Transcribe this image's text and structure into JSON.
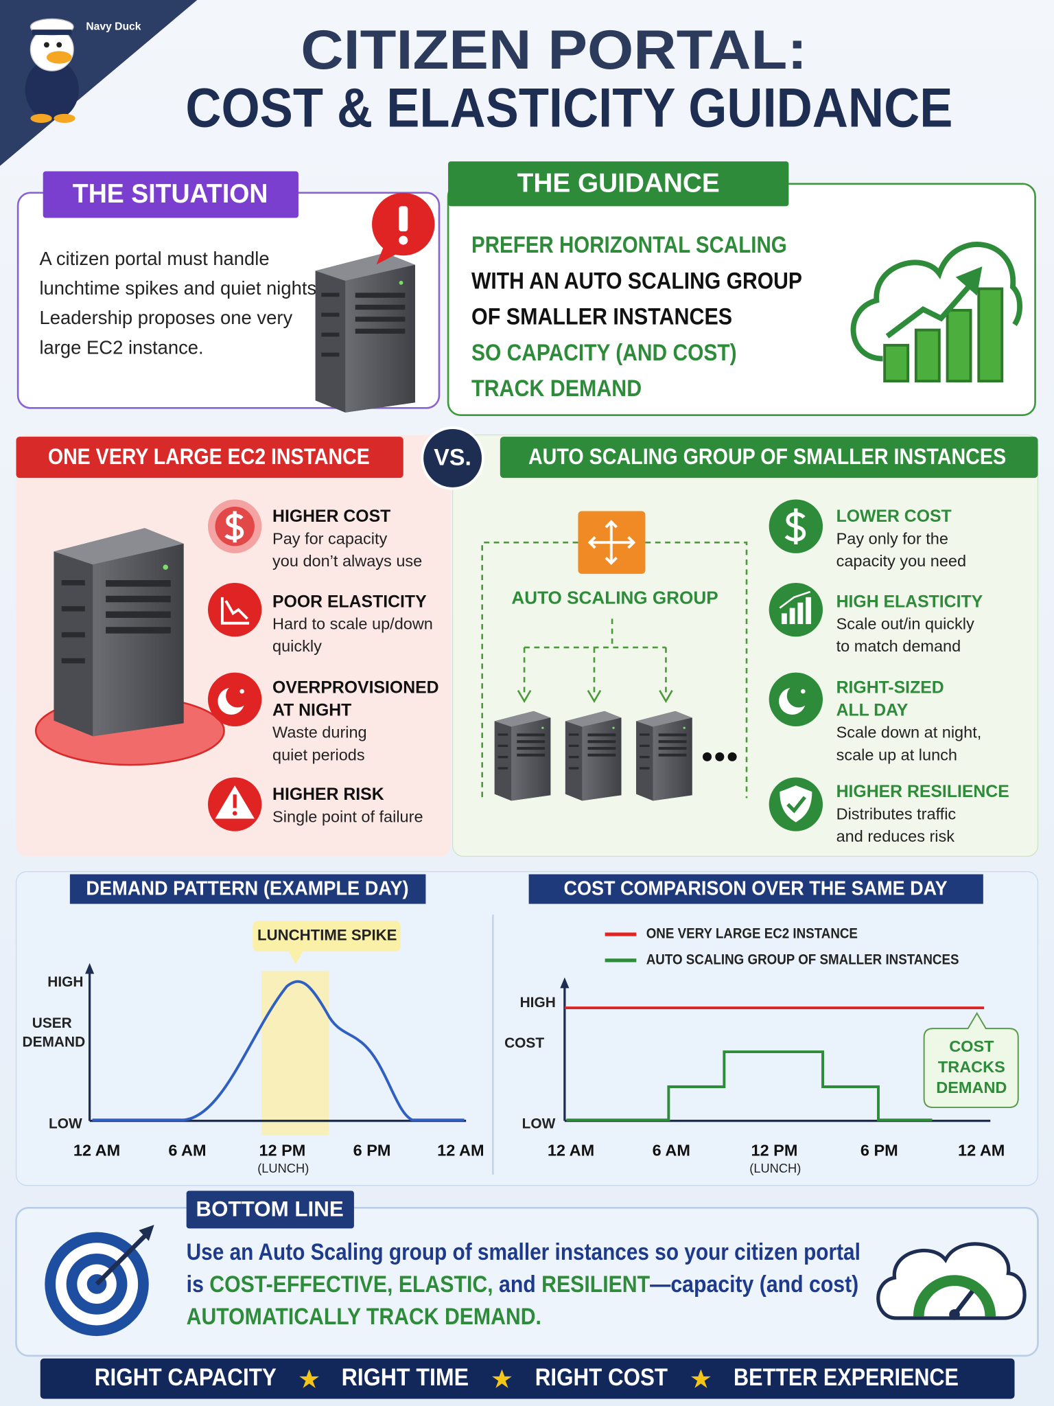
{
  "brand": "Navy Duck",
  "header": {
    "title_line1": "CITIZEN PORTAL:",
    "title_line2": "COST & ELASTICITY GUIDANCE"
  },
  "situation": {
    "heading": "THE SITUATION",
    "lines": [
      "A citizen portal must handle",
      "lunchtime spikes and quiet nights.",
      "Leadership proposes one very",
      "large EC2 instance."
    ]
  },
  "guidance": {
    "heading": "THE GUIDANCE",
    "lines": [
      "PREFER HORIZONTAL SCALING",
      "WITH AN AUTO SCALING GROUP",
      "OF SMALLER INSTANCES",
      "SO CAPACITY (AND COST)",
      "TRACK DEMAND"
    ]
  },
  "comparison": {
    "left_heading": "ONE VERY LARGE EC2 INSTANCE",
    "vs": "VS.",
    "right_heading": "AUTO SCALING GROUP OF SMALLER INSTANCES",
    "asg_label": "AUTO SCALING GROUP",
    "left_items": [
      {
        "title": [
          "HIGHER COST"
        ],
        "desc": [
          "Pay for capacity",
          "you don’t always use"
        ]
      },
      {
        "title": [
          "POOR ELASTICITY"
        ],
        "desc": [
          "Hard to scale up/down",
          "quickly"
        ]
      },
      {
        "title": [
          "OVERPROVISIONED",
          "AT NIGHT"
        ],
        "desc": [
          "Waste during",
          "quiet periods"
        ]
      },
      {
        "title": [
          "HIGHER RISK"
        ],
        "desc": [
          "Single point of failure"
        ]
      }
    ],
    "right_items": [
      {
        "title": [
          "LOWER COST"
        ],
        "desc": [
          "Pay only for the",
          "capacity you need"
        ]
      },
      {
        "title": [
          "HIGH ELASTICITY"
        ],
        "desc": [
          "Scale out/in quickly",
          "to match demand"
        ]
      },
      {
        "title": [
          "RIGHT-SIZED",
          "ALL DAY"
        ],
        "desc": [
          "Scale down at night,",
          "scale up at lunch"
        ]
      },
      {
        "title": [
          "HIGHER RESILIENCE"
        ],
        "desc": [
          "Distributes traffic",
          "and reduces risk"
        ]
      }
    ]
  },
  "demand_chart": {
    "title": "DEMAND PATTERN (EXAMPLE DAY)",
    "callout": "LUNCHTIME SPIKE",
    "y_high": "HIGH",
    "y_label": [
      "USER",
      "DEMAND"
    ],
    "y_low": "LOW",
    "x_labels": [
      "12 AM",
      "6 AM",
      "12 PM",
      "6 PM",
      "12 AM"
    ],
    "x_sublabel": "(LUNCH)"
  },
  "cost_chart": {
    "title": "COST COMPARISON OVER THE SAME DAY",
    "legend": [
      "ONE VERY LARGE EC2 INSTANCE",
      "AUTO SCALING GROUP OF SMALLER INSTANCES"
    ],
    "y_high": "HIGH",
    "y_label": "COST",
    "y_low": "LOW",
    "callout": [
      "COST",
      "TRACKS",
      "DEMAND"
    ],
    "x_labels": [
      "12 AM",
      "6 AM",
      "12 PM",
      "6 PM",
      "12 AM"
    ],
    "x_sublabel": "(LUNCH)"
  },
  "bottom_line": {
    "heading": "BOTTOM LINE",
    "line1": "Use an Auto Scaling group of smaller instances so your citizen portal",
    "line2": [
      "is ",
      "COST-EFFECTIVE, ELASTIC,",
      " and ",
      "RESILIENT",
      "—capacity (and cost)"
    ],
    "line3": "AUTOMATICALLY TRACK DEMAND."
  },
  "footer": [
    "RIGHT CAPACITY",
    "RIGHT TIME",
    "RIGHT COST",
    "BETTER EXPERIENCE"
  ]
}
